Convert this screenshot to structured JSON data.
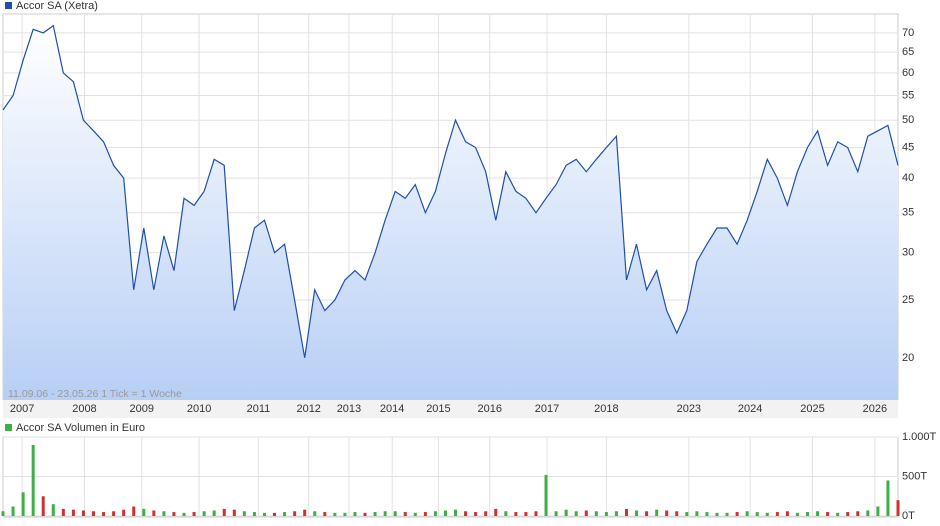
{
  "chart_data": [
    {
      "type": "line",
      "title": "Accor SA (Xetra)",
      "note": "11.09.06 - 23.05.26   1 Tick = 1 Woche",
      "color": "#1f4fa8",
      "log_scale": true,
      "grid": true,
      "values": [
        52,
        55,
        63,
        71,
        70,
        72,
        60,
        58,
        50,
        48,
        46,
        42,
        40,
        26,
        33,
        26,
        32,
        28,
        37,
        36,
        38,
        43,
        42,
        24,
        28,
        33,
        34,
        30,
        31,
        25,
        20,
        26,
        24,
        25,
        27,
        28,
        27,
        30,
        34,
        38,
        37,
        39,
        35,
        38,
        44,
        50,
        46,
        45,
        41,
        34,
        41,
        38,
        37,
        35,
        37,
        39,
        42,
        43,
        41,
        43,
        45,
        47,
        27,
        31,
        26,
        28,
        24,
        22,
        24,
        29,
        31,
        33,
        33,
        31,
        34,
        38,
        43,
        40,
        36,
        41,
        45,
        48,
        42,
        46,
        45,
        41,
        47,
        48,
        49,
        42
      ],
      "xlim": [
        0,
        89
      ],
      "xticks": [
        {
          "value": 1.9,
          "label": "2007"
        },
        {
          "value": 8.1,
          "label": "2008"
        },
        {
          "value": 13.8,
          "label": "2009"
        },
        {
          "value": 19.5,
          "label": "2010"
        },
        {
          "value": 25.4,
          "label": "2011"
        },
        {
          "value": 30.4,
          "label": "2012"
        },
        {
          "value": 34.4,
          "label": "2013"
        },
        {
          "value": 38.7,
          "label": "2014"
        },
        {
          "value": 43.3,
          "label": "2015"
        },
        {
          "value": 48.4,
          "label": "2016"
        },
        {
          "value": 54.1,
          "label": "2017"
        },
        {
          "value": 60.0,
          "label": "2018"
        },
        {
          "value": 68.2,
          "label": "2023"
        },
        {
          "value": 74.3,
          "label": "2024"
        },
        {
          "value": 80.5,
          "label": "2025"
        },
        {
          "value": 86.7,
          "label": "2026"
        }
      ],
      "ylim": [
        17,
        75.3
      ],
      "yticks": [
        20,
        25,
        30,
        35,
        40,
        45,
        50,
        55,
        60,
        65,
        70
      ]
    },
    {
      "type": "volume",
      "title": "Accor SA Volumen in Euro",
      "up_color": "#3cb043",
      "down_color": "#d03030",
      "grid": true,
      "values": [
        60,
        120,
        300,
        900,
        250,
        150,
        90,
        80,
        70,
        60,
        50,
        60,
        80,
        120,
        90,
        70,
        60,
        50,
        40,
        50,
        60,
        70,
        90,
        80,
        60,
        50,
        40,
        40,
        50,
        60,
        80,
        60,
        50,
        40,
        40,
        50,
        40,
        50,
        60,
        60,
        50,
        40,
        50,
        60,
        70,
        80,
        60,
        50,
        60,
        90,
        60,
        50,
        50,
        60,
        520,
        60,
        80,
        60,
        70,
        60,
        50,
        60,
        90,
        70,
        60,
        80,
        70,
        60,
        50,
        60,
        50,
        40,
        40,
        50,
        60,
        50,
        40,
        50,
        60,
        40,
        50,
        60,
        50,
        40,
        50,
        60,
        70,
        120,
        450,
        200
      ],
      "ylim": [
        0,
        1000
      ],
      "yticks": [
        {
          "value": 0,
          "label": "0T"
        },
        {
          "value": 500,
          "label": "500T"
        },
        {
          "value": 1000,
          "label": "1.000T"
        }
      ]
    }
  ]
}
